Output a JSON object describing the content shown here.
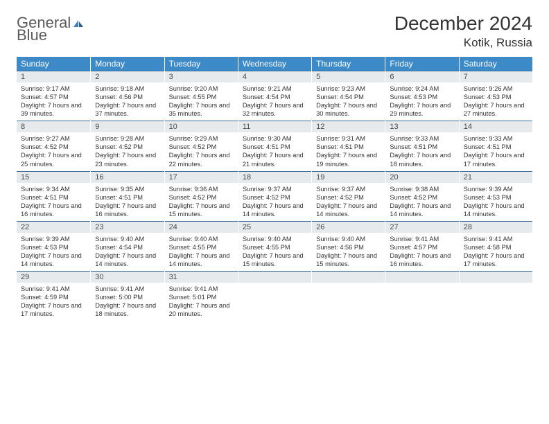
{
  "brand": {
    "textGray": "General",
    "textBlue": "Blue"
  },
  "colors": {
    "headerBlue": "#3c8ac8",
    "cellHeader": "#e7eaec",
    "cellRule": "#3c6e9a",
    "text": "#333333",
    "logoGray": "#5a5a5a",
    "logoBlue": "#3b82c4",
    "bg": "#ffffff"
  },
  "typography": {
    "month_fontsize": 28,
    "location_fontsize": 17,
    "dayhead_fontsize": 12,
    "daynum_fontsize": 11,
    "body_fontsize": 9.3
  },
  "title": "December 2024",
  "location": "Kotik, Russia",
  "dayNames": [
    "Sunday",
    "Monday",
    "Tuesday",
    "Wednesday",
    "Thursday",
    "Friday",
    "Saturday"
  ],
  "weeks": [
    [
      {
        "n": "1",
        "sr": "9:17 AM",
        "ss": "4:57 PM",
        "dl": "7 hours and 39 minutes."
      },
      {
        "n": "2",
        "sr": "9:18 AM",
        "ss": "4:56 PM",
        "dl": "7 hours and 37 minutes."
      },
      {
        "n": "3",
        "sr": "9:20 AM",
        "ss": "4:55 PM",
        "dl": "7 hours and 35 minutes."
      },
      {
        "n": "4",
        "sr": "9:21 AM",
        "ss": "4:54 PM",
        "dl": "7 hours and 32 minutes."
      },
      {
        "n": "5",
        "sr": "9:23 AM",
        "ss": "4:54 PM",
        "dl": "7 hours and 30 minutes."
      },
      {
        "n": "6",
        "sr": "9:24 AM",
        "ss": "4:53 PM",
        "dl": "7 hours and 29 minutes."
      },
      {
        "n": "7",
        "sr": "9:26 AM",
        "ss": "4:53 PM",
        "dl": "7 hours and 27 minutes."
      }
    ],
    [
      {
        "n": "8",
        "sr": "9:27 AM",
        "ss": "4:52 PM",
        "dl": "7 hours and 25 minutes."
      },
      {
        "n": "9",
        "sr": "9:28 AM",
        "ss": "4:52 PM",
        "dl": "7 hours and 23 minutes."
      },
      {
        "n": "10",
        "sr": "9:29 AM",
        "ss": "4:52 PM",
        "dl": "7 hours and 22 minutes."
      },
      {
        "n": "11",
        "sr": "9:30 AM",
        "ss": "4:51 PM",
        "dl": "7 hours and 21 minutes."
      },
      {
        "n": "12",
        "sr": "9:31 AM",
        "ss": "4:51 PM",
        "dl": "7 hours and 19 minutes."
      },
      {
        "n": "13",
        "sr": "9:33 AM",
        "ss": "4:51 PM",
        "dl": "7 hours and 18 minutes."
      },
      {
        "n": "14",
        "sr": "9:33 AM",
        "ss": "4:51 PM",
        "dl": "7 hours and 17 minutes."
      }
    ],
    [
      {
        "n": "15",
        "sr": "9:34 AM",
        "ss": "4:51 PM",
        "dl": "7 hours and 16 minutes."
      },
      {
        "n": "16",
        "sr": "9:35 AM",
        "ss": "4:51 PM",
        "dl": "7 hours and 16 minutes."
      },
      {
        "n": "17",
        "sr": "9:36 AM",
        "ss": "4:52 PM",
        "dl": "7 hours and 15 minutes."
      },
      {
        "n": "18",
        "sr": "9:37 AM",
        "ss": "4:52 PM",
        "dl": "7 hours and 14 minutes."
      },
      {
        "n": "19",
        "sr": "9:37 AM",
        "ss": "4:52 PM",
        "dl": "7 hours and 14 minutes."
      },
      {
        "n": "20",
        "sr": "9:38 AM",
        "ss": "4:52 PM",
        "dl": "7 hours and 14 minutes."
      },
      {
        "n": "21",
        "sr": "9:39 AM",
        "ss": "4:53 PM",
        "dl": "7 hours and 14 minutes."
      }
    ],
    [
      {
        "n": "22",
        "sr": "9:39 AM",
        "ss": "4:53 PM",
        "dl": "7 hours and 14 minutes."
      },
      {
        "n": "23",
        "sr": "9:40 AM",
        "ss": "4:54 PM",
        "dl": "7 hours and 14 minutes."
      },
      {
        "n": "24",
        "sr": "9:40 AM",
        "ss": "4:55 PM",
        "dl": "7 hours and 14 minutes."
      },
      {
        "n": "25",
        "sr": "9:40 AM",
        "ss": "4:55 PM",
        "dl": "7 hours and 15 minutes."
      },
      {
        "n": "26",
        "sr": "9:40 AM",
        "ss": "4:56 PM",
        "dl": "7 hours and 15 minutes."
      },
      {
        "n": "27",
        "sr": "9:41 AM",
        "ss": "4:57 PM",
        "dl": "7 hours and 16 minutes."
      },
      {
        "n": "28",
        "sr": "9:41 AM",
        "ss": "4:58 PM",
        "dl": "7 hours and 17 minutes."
      }
    ],
    [
      {
        "n": "29",
        "sr": "9:41 AM",
        "ss": "4:59 PM",
        "dl": "7 hours and 17 minutes."
      },
      {
        "n": "30",
        "sr": "9:41 AM",
        "ss": "5:00 PM",
        "dl": "7 hours and 18 minutes."
      },
      {
        "n": "31",
        "sr": "9:41 AM",
        "ss": "5:01 PM",
        "dl": "7 hours and 20 minutes."
      },
      null,
      null,
      null,
      null
    ]
  ],
  "labels": {
    "sunrise": "Sunrise: ",
    "sunset": "Sunset: ",
    "daylight": "Daylight: "
  }
}
